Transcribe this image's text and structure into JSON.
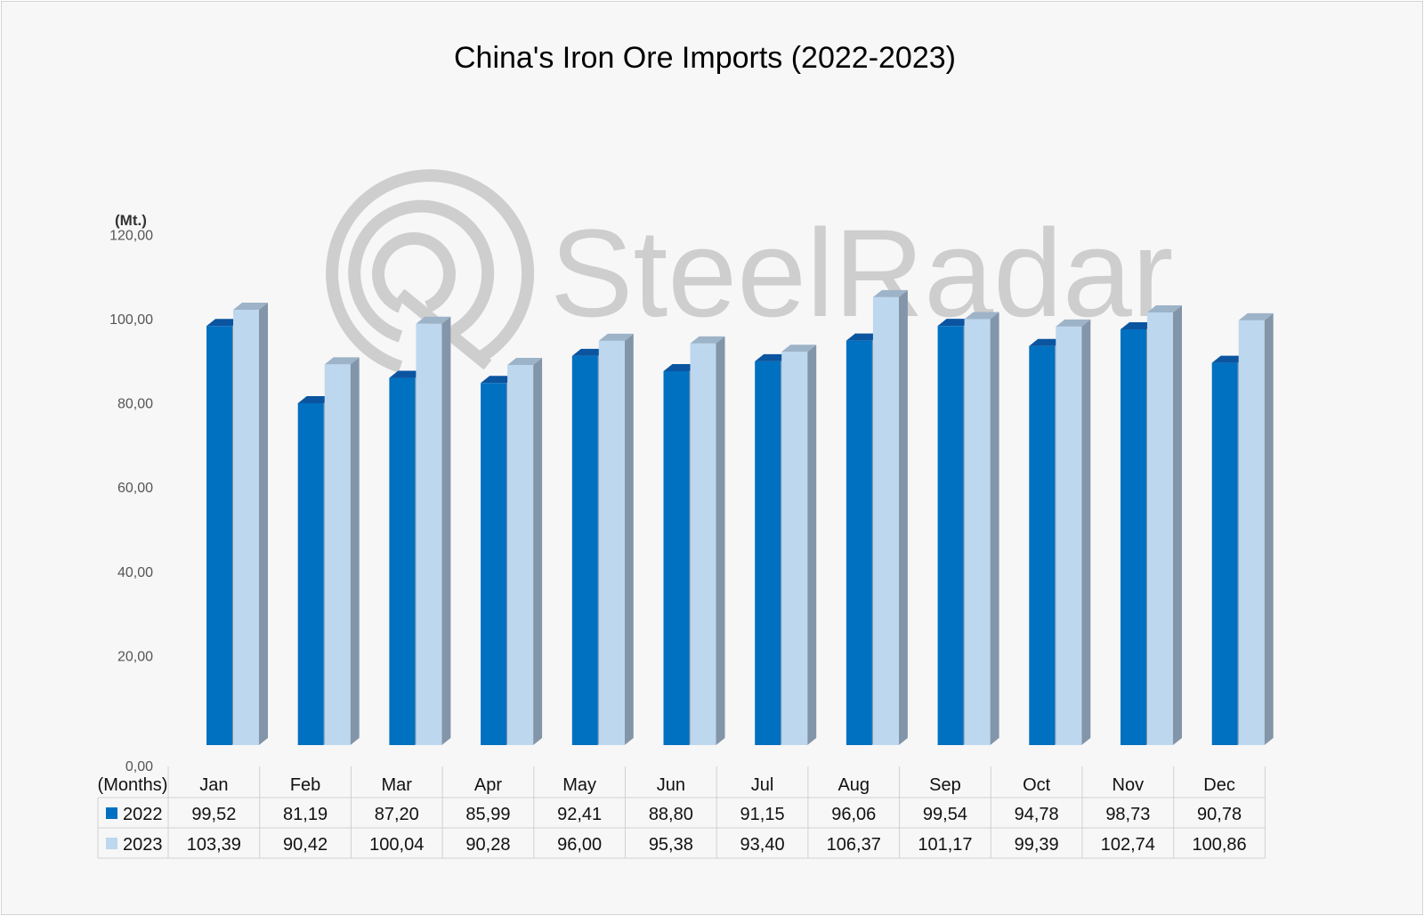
{
  "chart_data": {
    "type": "bar",
    "title": "China's Iron Ore Imports (2022-2023)",
    "unit_label": "(Mt.)",
    "xlabel": "(Months)",
    "ylim": [
      0,
      120
    ],
    "y_ticks": [
      "0,00",
      "20,00",
      "40,00",
      "60,00",
      "80,00",
      "100,00",
      "120,00"
    ],
    "categories": [
      "Jan",
      "Feb",
      "Mar",
      "Apr",
      "May",
      "Jun",
      "Jul",
      "Aug",
      "Sep",
      "Oct",
      "Nov",
      "Dec"
    ],
    "series": [
      {
        "name": "2022",
        "color": "#0070c0",
        "values": [
          99.52,
          81.19,
          87.2,
          85.99,
          92.41,
          88.8,
          91.15,
          96.06,
          99.54,
          94.78,
          98.73,
          90.78
        ],
        "labels": [
          "99,52",
          "81,19",
          "87,20",
          "85,99",
          "92,41",
          "88,80",
          "91,15",
          "96,06",
          "99,54",
          "94,78",
          "98,73",
          "90,78"
        ]
      },
      {
        "name": "2023",
        "color": "#bdd7ee",
        "values": [
          103.39,
          90.42,
          100.04,
          90.28,
          96.0,
          95.38,
          93.4,
          106.37,
          101.17,
          99.39,
          102.74,
          100.86
        ],
        "labels": [
          "103,39",
          "90,42",
          "100,04",
          "90,28",
          "96,00",
          "95,38",
          "93,40",
          "106,37",
          "101,17",
          "99,39",
          "102,74",
          "100,86"
        ]
      }
    ],
    "grid": false,
    "legend": "data-table"
  },
  "watermark": {
    "text": "SteelRadar",
    "icon": "radar-logo-icon"
  }
}
